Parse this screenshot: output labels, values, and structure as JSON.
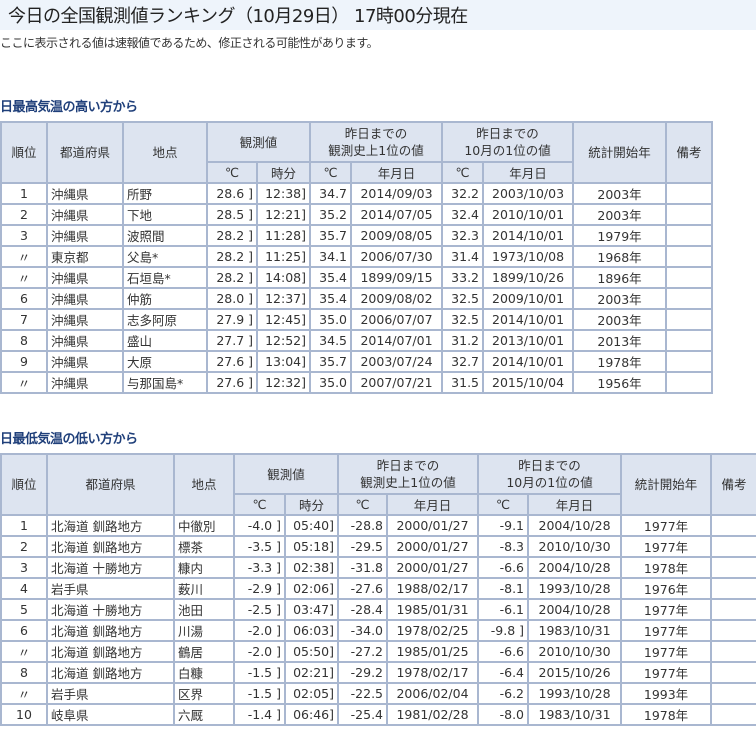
{
  "title": "今日の全国観測値ランキング（10月29日） 17時00分現在",
  "note": "ここに表示される値は速報値であるため、修正される可能性があります。",
  "headers": {
    "rank": "順位",
    "pref": "都道府県",
    "station": "地点",
    "observed": "観測値",
    "record_all_1": "昨日までの",
    "record_all_2": "観測史上1位の値",
    "record_month_1": "昨日までの",
    "record_month_2": "10月の1位の値",
    "start_year": "統計開始年",
    "remarks": "備考",
    "deg": "℃",
    "time": "時分",
    "date": "年月日"
  },
  "high": {
    "heading": "日最高気温の高い方から",
    "rows": [
      [
        "1",
        "沖縄県",
        "所野",
        "28.6 ]",
        "12:38]",
        "34.7",
        "2014/09/03",
        "32.2",
        "2003/10/03",
        "2003年",
        ""
      ],
      [
        "2",
        "沖縄県",
        "下地",
        "28.5 ]",
        "12:21]",
        "35.2",
        "2014/07/05",
        "32.4",
        "2010/10/01",
        "2003年",
        ""
      ],
      [
        "3",
        "沖縄県",
        "波照間",
        "28.2 ]",
        "11:28]",
        "35.7",
        "2009/08/05",
        "32.3",
        "2014/10/01",
        "1979年",
        ""
      ],
      [
        "〃",
        "東京都",
        "父島*",
        "28.2 ]",
        "11:25]",
        "34.1",
        "2006/07/30",
        "31.4",
        "1973/10/08",
        "1968年",
        ""
      ],
      [
        "〃",
        "沖縄県",
        "石垣島*",
        "28.2 ]",
        "14:08]",
        "35.4",
        "1899/09/15",
        "33.2",
        "1899/10/26",
        "1896年",
        ""
      ],
      [
        "6",
        "沖縄県",
        "仲筋",
        "28.0 ]",
        "12:37]",
        "35.4",
        "2009/08/02",
        "32.5",
        "2009/10/01",
        "2003年",
        ""
      ],
      [
        "7",
        "沖縄県",
        "志多阿原",
        "27.9 ]",
        "12:45]",
        "35.0",
        "2006/07/07",
        "32.5",
        "2014/10/01",
        "2003年",
        ""
      ],
      [
        "8",
        "沖縄県",
        "盛山",
        "27.7 ]",
        "12:52]",
        "34.5",
        "2014/07/01",
        "31.2",
        "2013/10/01",
        "2013年",
        ""
      ],
      [
        "9",
        "沖縄県",
        "大原",
        "27.6 ]",
        "13:04]",
        "35.7",
        "2003/07/24",
        "32.7",
        "2014/10/01",
        "1978年",
        ""
      ],
      [
        "〃",
        "沖縄県",
        "与那国島*",
        "27.6 ]",
        "12:32]",
        "35.0",
        "2007/07/21",
        "31.5",
        "2015/10/04",
        "1956年",
        ""
      ]
    ]
  },
  "low": {
    "heading": "日最低気温の低い方から",
    "rows": [
      [
        "1",
        "北海道 釧路地方",
        "中徹別",
        "-4.0 ]",
        "05:40]",
        "-28.8",
        "2000/01/27",
        "-9.1",
        "2004/10/28",
        "1977年",
        ""
      ],
      [
        "2",
        "北海道 釧路地方",
        "標茶",
        "-3.5 ]",
        "05:18]",
        "-29.5",
        "2000/01/27",
        "-8.3",
        "2010/10/30",
        "1977年",
        ""
      ],
      [
        "3",
        "北海道 十勝地方",
        "糠内",
        "-3.3 ]",
        "02:38]",
        "-31.8",
        "2000/01/27",
        "-6.6",
        "2004/10/28",
        "1978年",
        ""
      ],
      [
        "4",
        "岩手県",
        "薮川",
        "-2.9 ]",
        "02:06]",
        "-27.6",
        "1988/02/17",
        "-8.1",
        "1993/10/28",
        "1976年",
        ""
      ],
      [
        "5",
        "北海道 十勝地方",
        "池田",
        "-2.5 ]",
        "03:47]",
        "-28.4",
        "1985/01/31",
        "-6.1",
        "2004/10/28",
        "1977年",
        ""
      ],
      [
        "6",
        "北海道 釧路地方",
        "川湯",
        "-2.0 ]",
        "06:03]",
        "-34.0",
        "1978/02/25",
        "-9.8 ]",
        "1983/10/31",
        "1977年",
        ""
      ],
      [
        "〃",
        "北海道 釧路地方",
        "鶴居",
        "-2.0 ]",
        "05:50]",
        "-27.2",
        "1985/01/25",
        "-6.6",
        "2010/10/30",
        "1977年",
        ""
      ],
      [
        "8",
        "北海道 釧路地方",
        "白糠",
        "-1.5 ]",
        "02:21]",
        "-29.2",
        "1978/02/17",
        "-6.4",
        "2015/10/26",
        "1977年",
        ""
      ],
      [
        "〃",
        "岩手県",
        "区界",
        "-1.5 ]",
        "02:05]",
        "-22.5",
        "2006/02/04",
        "-6.2",
        "1993/10/28",
        "1993年",
        ""
      ],
      [
        "10",
        "岐阜県",
        "六厩",
        "-1.4 ]",
        "06:46]",
        "-25.4",
        "1981/02/28",
        "-8.0",
        "1983/10/31",
        "1978年",
        ""
      ]
    ]
  }
}
